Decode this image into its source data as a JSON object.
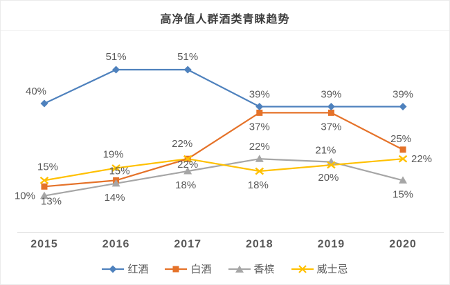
{
  "chart_data": {
    "type": "line",
    "title": "高净值人群酒类青睐趋势",
    "categories": [
      "2015",
      "2016",
      "2017",
      "2018",
      "2019",
      "2020"
    ],
    "series": [
      {
        "id": "red-wine",
        "name": "红酒",
        "color": "#4E81BD",
        "marker": "diamond",
        "values": [
          40,
          51,
          51,
          39,
          39,
          39
        ]
      },
      {
        "id": "baijiu",
        "name": "白酒",
        "color": "#E57229",
        "marker": "square",
        "values": [
          13,
          15,
          22,
          37,
          37,
          25
        ]
      },
      {
        "id": "champagne",
        "name": "香槟",
        "color": "#A6A6A6",
        "marker": "triangle",
        "values": [
          10,
          14,
          18,
          22,
          21,
          15
        ]
      },
      {
        "id": "whisky",
        "name": "威士忌",
        "color": "#FFC000",
        "marker": "x",
        "values": [
          15,
          19,
          22,
          18,
          20,
          22
        ]
      }
    ],
    "unit": "%",
    "data_labels": true,
    "grid": false,
    "legend_position": "bottom",
    "ylim": [
      0,
      60
    ],
    "text_color": "#595959",
    "title_color": "#3d3d3d",
    "axis_line_color": "#d9d9d9"
  }
}
